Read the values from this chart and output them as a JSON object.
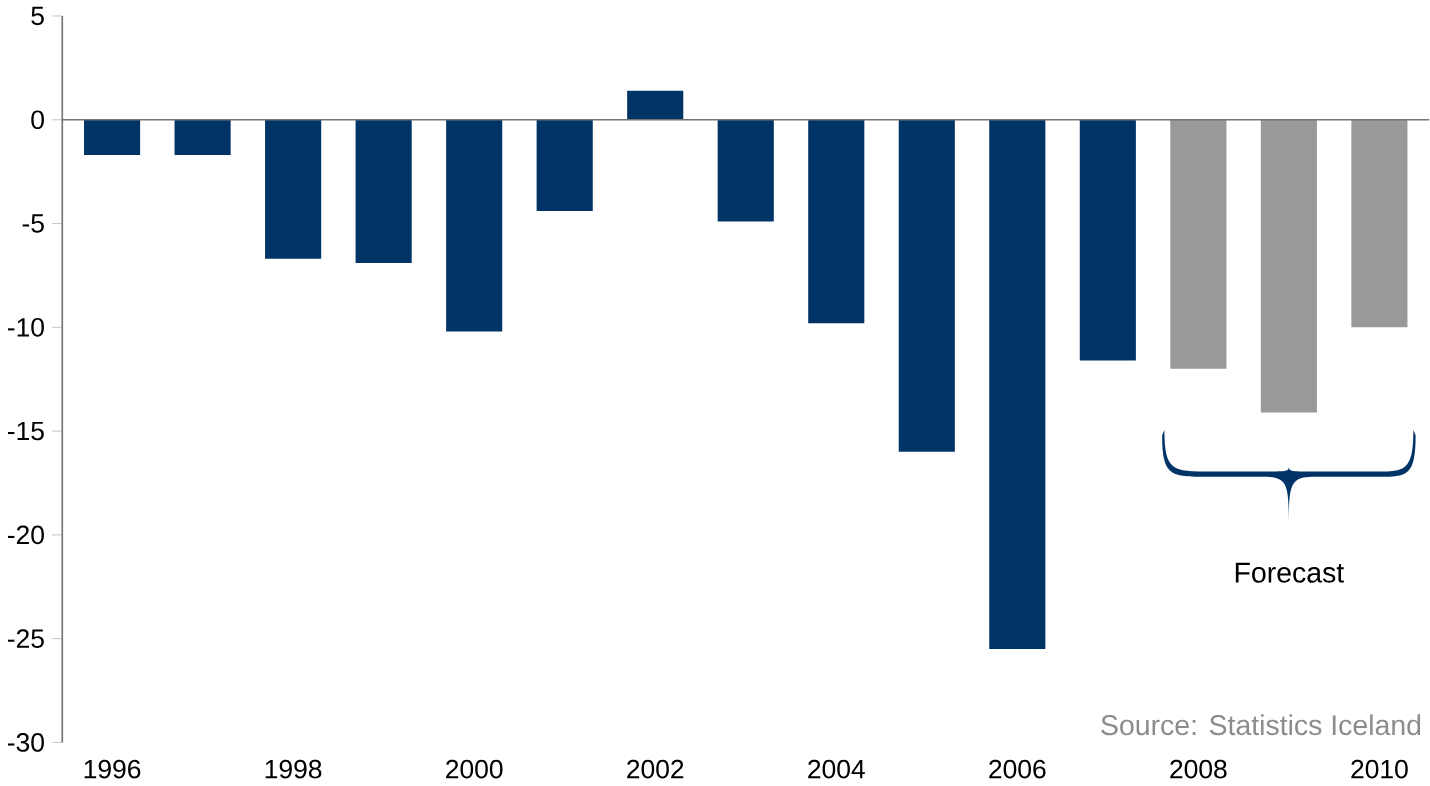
{
  "chart_data": {
    "type": "bar",
    "categories": [
      "1996",
      null,
      "1998",
      null,
      "2000",
      null,
      "2002",
      null,
      "2004",
      null,
      "2006",
      null,
      "2008",
      null,
      "2010"
    ],
    "values": [
      -1.7,
      -1.7,
      -6.7,
      -6.9,
      -10.2,
      -4.4,
      1.4,
      -4.9,
      -9.8,
      -16.0,
      -25.5,
      -11.6,
      -12.0,
      -14.1,
      -10.0
    ],
    "colors": [
      "#003366",
      "#003366",
      "#003366",
      "#003366",
      "#003366",
      "#003366",
      "#003366",
      "#003366",
      "#003366",
      "#003366",
      "#003366",
      "#003366",
      "#999999",
      "#999999",
      "#999999"
    ],
    "ylim": [
      -30,
      5
    ],
    "yticks": [
      -30,
      -25,
      -20,
      -15,
      -10,
      -5,
      0,
      5
    ],
    "annotations": [
      "Forecast",
      "Source: Statistics Iceland"
    ]
  }
}
